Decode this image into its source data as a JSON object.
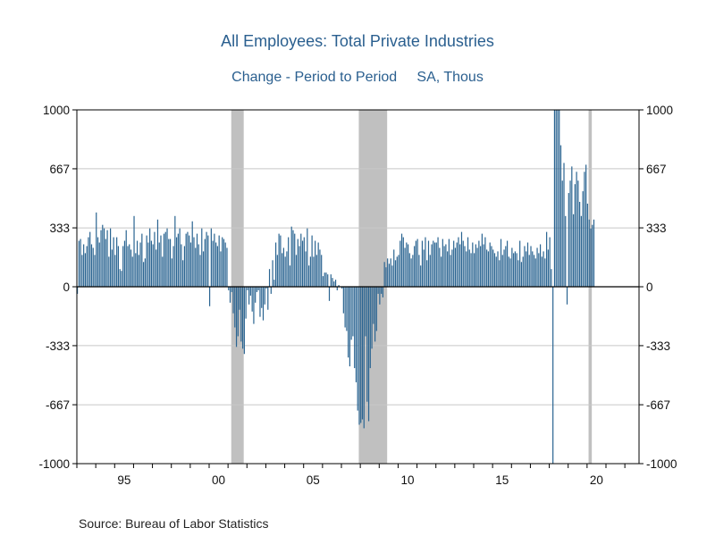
{
  "chart_data": {
    "type": "bar",
    "title": "All Employees: Total Private Industries",
    "subtitle_left": "Change - Period to Period",
    "subtitle_right": "SA, Thous",
    "source": "Source:  Bureau of Labor Statistics",
    "ylim": [
      -1000,
      1000
    ],
    "yticks": [
      1000,
      667,
      333,
      0,
      -333,
      -667,
      -1000
    ],
    "ytick_labels": [
      "1000",
      "667",
      "333",
      "0",
      "-333",
      "-667",
      "-1000"
    ],
    "xlim": [
      1993.0,
      2022.75
    ],
    "xticks": [
      1995,
      2000,
      2005,
      2010,
      2015,
      2020
    ],
    "xtick_labels": [
      "95",
      "00",
      "05",
      "10",
      "15",
      "20"
    ],
    "grid": true,
    "bar_color": "#2a6491",
    "recession_color": "#c0c0c0",
    "recessions": [
      [
        2001.17,
        2001.83
      ],
      [
        2007.92,
        2009.42
      ],
      [
        2020.08,
        2020.25
      ]
    ],
    "bar_x_start": 1993.0,
    "bar_x_step": 0.08333,
    "values": [
      -40,
      260,
      270,
      180,
      240,
      190,
      230,
      280,
      310,
      240,
      220,
      180,
      420,
      280,
      250,
      320,
      350,
      330,
      270,
      320,
      170,
      330,
      210,
      280,
      180,
      280,
      230,
      100,
      90,
      230,
      260,
      320,
      230,
      240,
      210,
      170,
      400,
      190,
      260,
      180,
      250,
      300,
      140,
      160,
      290,
      250,
      330,
      260,
      240,
      310,
      210,
      380,
      250,
      290,
      170,
      300,
      310,
      330,
      270,
      270,
      160,
      230,
      400,
      280,
      300,
      330,
      240,
      150,
      230,
      300,
      310,
      290,
      250,
      370,
      280,
      220,
      300,
      240,
      180,
      330,
      200,
      270,
      310,
      290,
      -110,
      330,
      260,
      300,
      250,
      230,
      290,
      200,
      280,
      270,
      250,
      220,
      -20,
      -90,
      -30,
      -150,
      -230,
      -340,
      -280,
      -130,
      -310,
      -350,
      -380,
      -180,
      -20,
      -100,
      -50,
      -140,
      -210,
      -90,
      -30,
      -20,
      -170,
      -120,
      -190,
      -100,
      -10,
      -130,
      100,
      -40,
      150,
      40,
      250,
      180,
      300,
      290,
      190,
      220,
      170,
      200,
      280,
      120,
      340,
      320,
      300,
      180,
      270,
      230,
      300,
      260,
      280,
      200,
      330,
      120,
      170,
      290,
      170,
      260,
      180,
      250,
      210,
      180,
      60,
      80,
      80,
      70,
      -80,
      70,
      50,
      30,
      40,
      -20,
      10,
      0,
      -10,
      -150,
      -230,
      -250,
      -400,
      -450,
      -300,
      -280,
      -460,
      -540,
      -700,
      -780,
      -770,
      -750,
      -800,
      -280,
      -650,
      -760,
      -460,
      -350,
      -210,
      -310,
      -250,
      -40,
      -100,
      -40,
      -60,
      140,
      110,
      160,
      130,
      160,
      120,
      210,
      150,
      170,
      180,
      260,
      300,
      280,
      220,
      250,
      240,
      190,
      160,
      180,
      230,
      260,
      270,
      180,
      120,
      260,
      210,
      280,
      150,
      260,
      180,
      240,
      260,
      250,
      250,
      280,
      220,
      170,
      270,
      230,
      240,
      200,
      270,
      180,
      210,
      260,
      220,
      250,
      280,
      240,
      310,
      260,
      230,
      200,
      280,
      210,
      190,
      250,
      190,
      240,
      220,
      260,
      230,
      300,
      240,
      280,
      210,
      200,
      250,
      230,
      210,
      190,
      170,
      200,
      150,
      270,
      180,
      210,
      230,
      260,
      170,
      160,
      220,
      190,
      200,
      190,
      150,
      260,
      140,
      170,
      230,
      200,
      250,
      180,
      230,
      200,
      180,
      160,
      220,
      190,
      240,
      170,
      200,
      160,
      310,
      210,
      280,
      100,
      -1000,
      1000,
      1000,
      1000,
      1000,
      800,
      600,
      700,
      400,
      -100,
      530,
      600,
      680,
      410,
      580,
      650,
      600,
      480,
      400,
      540,
      650,
      690,
      470,
      380,
      330,
      350,
      380
    ]
  }
}
